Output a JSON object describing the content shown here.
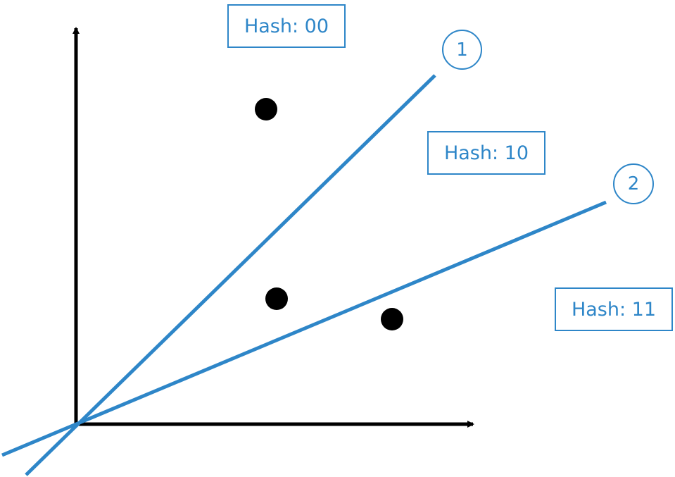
{
  "colors": {
    "line": "#2e86c8",
    "axis": "#000000",
    "point": "#000000",
    "label_text": "#2e86c8"
  },
  "regions": [
    {
      "hash_label": "Hash: 00"
    },
    {
      "hash_label": "Hash: 10"
    },
    {
      "hash_label": "Hash: 11"
    }
  ],
  "hyperplanes": [
    {
      "label": "1"
    },
    {
      "label": "2"
    }
  ]
}
